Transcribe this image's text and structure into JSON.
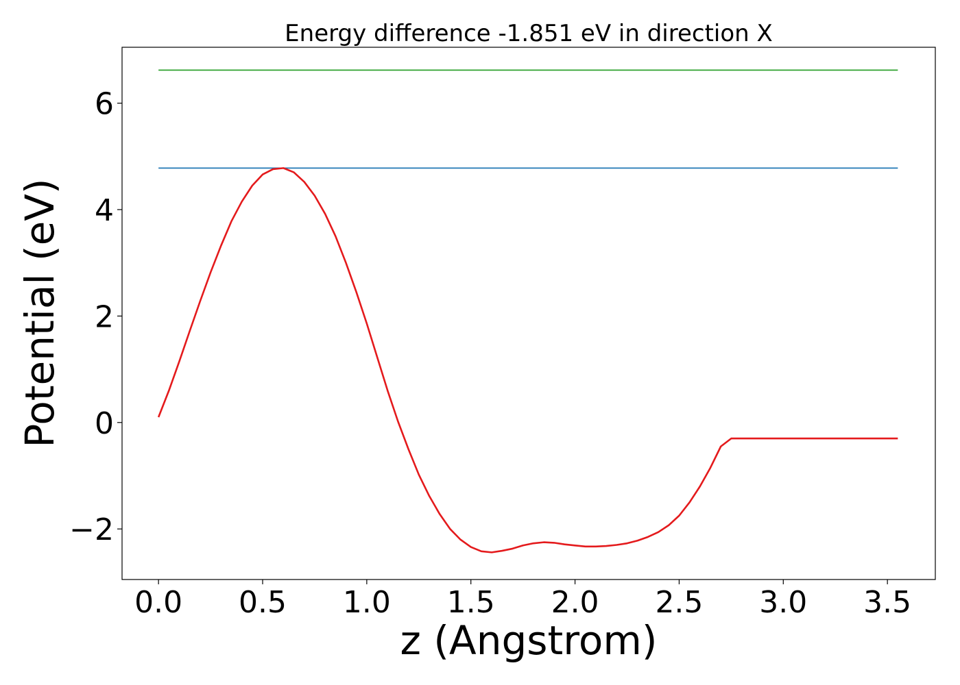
{
  "chart_data": {
    "type": "line",
    "title": "Energy difference -1.851 eV in direction X",
    "xlabel": "z (Angstrom)",
    "ylabel": "Potential (eV)",
    "xlim": [
      -0.175,
      3.73
    ],
    "ylim": [
      -2.95,
      7.05
    ],
    "x_ticks": [
      0.0,
      0.5,
      1.0,
      1.5,
      2.0,
      2.5,
      3.0,
      3.5
    ],
    "x_tick_labels": [
      "0.0",
      "0.5",
      "1.0",
      "1.5",
      "2.0",
      "2.5",
      "3.0",
      "3.5"
    ],
    "y_ticks": [
      -2,
      0,
      2,
      4,
      6
    ],
    "y_tick_labels": [
      "−2",
      "0",
      "2",
      "4",
      "6"
    ],
    "grid": false,
    "legend": "none",
    "series": [
      {
        "color": "#2ca02c",
        "x": [
          0.0,
          3.55
        ],
        "y": [
          6.62,
          6.62
        ]
      },
      {
        "color": "#1f77b4",
        "x": [
          0.0,
          3.55
        ],
        "y": [
          4.78,
          4.78
        ]
      },
      {
        "color": "#e41a1c",
        "x": [
          0.0,
          0.05,
          0.1,
          0.15,
          0.2,
          0.25,
          0.3,
          0.35,
          0.4,
          0.45,
          0.5,
          0.55,
          0.6,
          0.65,
          0.7,
          0.75,
          0.8,
          0.85,
          0.9,
          0.95,
          1.0,
          1.05,
          1.1,
          1.15,
          1.2,
          1.25,
          1.3,
          1.35,
          1.4,
          1.45,
          1.5,
          1.55,
          1.6,
          1.65,
          1.7,
          1.75,
          1.8,
          1.85,
          1.9,
          1.95,
          2.0,
          2.05,
          2.1,
          2.15,
          2.2,
          2.25,
          2.3,
          2.35,
          2.4,
          2.45,
          2.5,
          2.55,
          2.6,
          2.65,
          2.7,
          2.75,
          2.8,
          2.85,
          2.9,
          2.95,
          3.0,
          3.05,
          3.1,
          3.15,
          3.2,
          3.25,
          3.3,
          3.35,
          3.4,
          3.45,
          3.5,
          3.55
        ],
        "y": [
          0.1,
          0.6,
          1.15,
          1.72,
          2.28,
          2.82,
          3.32,
          3.78,
          4.15,
          4.45,
          4.66,
          4.76,
          4.78,
          4.7,
          4.52,
          4.26,
          3.92,
          3.5,
          3.0,
          2.45,
          1.86,
          1.23,
          0.6,
          0.02,
          -0.5,
          -0.98,
          -1.38,
          -1.72,
          -2.0,
          -2.2,
          -2.34,
          -2.42,
          -2.44,
          -2.41,
          -2.37,
          -2.31,
          -2.27,
          -2.25,
          -2.26,
          -2.29,
          -2.31,
          -2.33,
          -2.33,
          -2.32,
          -2.3,
          -2.27,
          -2.22,
          -2.15,
          -2.06,
          -1.93,
          -1.75,
          -1.5,
          -1.2,
          -0.85,
          -0.45,
          -0.3,
          -0.3,
          -0.3,
          -0.3,
          -0.3,
          -0.3,
          -0.3,
          -0.3,
          -0.3,
          -0.3,
          -0.3,
          -0.3,
          -0.3,
          -0.3,
          -0.3,
          -0.3,
          -0.3
        ]
      }
    ]
  }
}
